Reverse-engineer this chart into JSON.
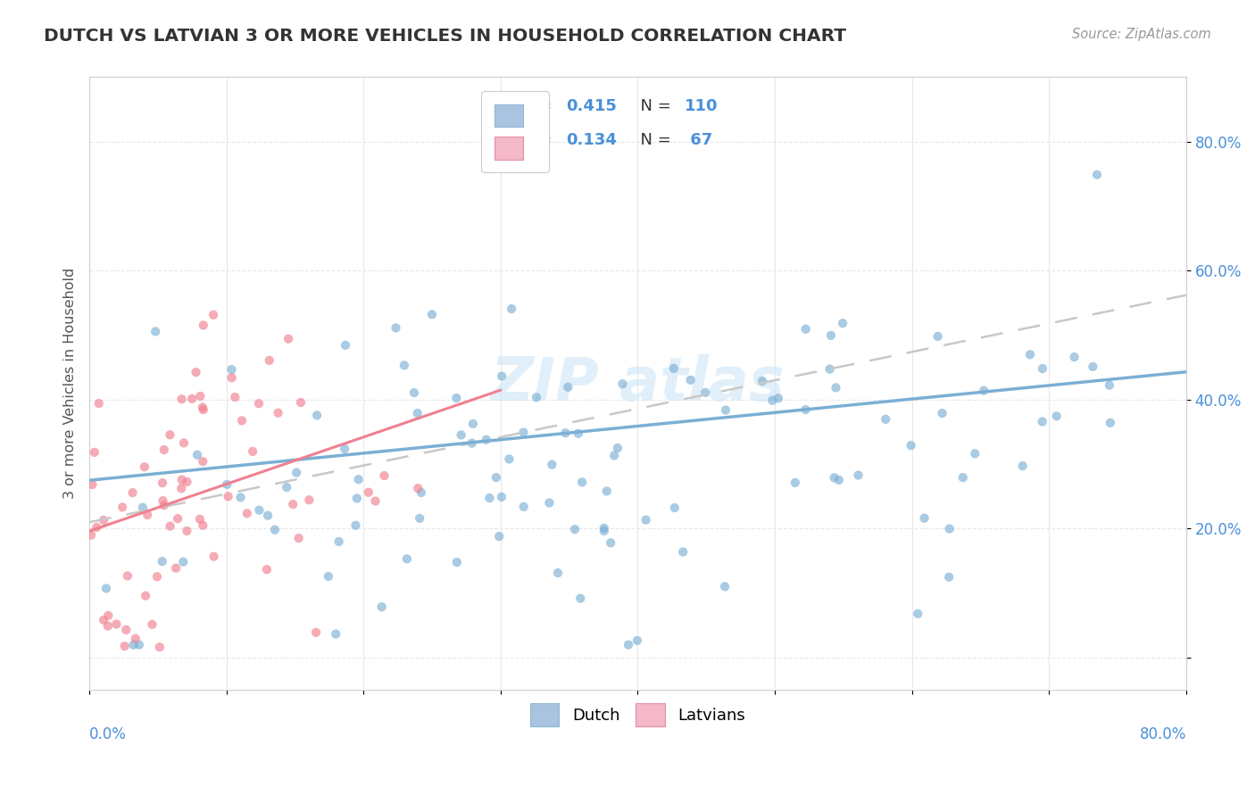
{
  "title": "DUTCH VS LATVIAN 3 OR MORE VEHICLES IN HOUSEHOLD CORRELATION CHART",
  "source": "Source: ZipAtlas.com",
  "ylabel": "3 or more Vehicles in Household",
  "bottom_legend": [
    "Dutch",
    "Latvians"
  ],
  "dutch_color": "#7bafd4",
  "dutch_face": "#a8c4e0",
  "latvian_color": "#f08090",
  "latvian_face": "#f4b8c8",
  "dutch_R": 0.415,
  "dutch_N": 110,
  "latvian_R": 0.134,
  "latvian_N": 67,
  "xlim": [
    0.0,
    0.8
  ],
  "ylim": [
    -0.05,
    0.9
  ],
  "y_ticks": [
    0.0,
    0.2,
    0.4,
    0.6,
    0.8
  ],
  "y_tick_labels": [
    "",
    "20.0%",
    "40.0%",
    "60.0%",
    "80.0%"
  ],
  "x_ticks": [
    0.0,
    0.1,
    0.2,
    0.3,
    0.4,
    0.5,
    0.6,
    0.7,
    0.8
  ],
  "background_color": "#ffffff",
  "grid_color": "#e8e8e8",
  "watermark_color": "#cce5f5",
  "tick_color": "#4a90d9",
  "label_color": "#555555",
  "title_color": "#333333",
  "source_color": "#999999",
  "legend_R_color": "#4a90d9",
  "legend_N_color": "#4a90d9"
}
